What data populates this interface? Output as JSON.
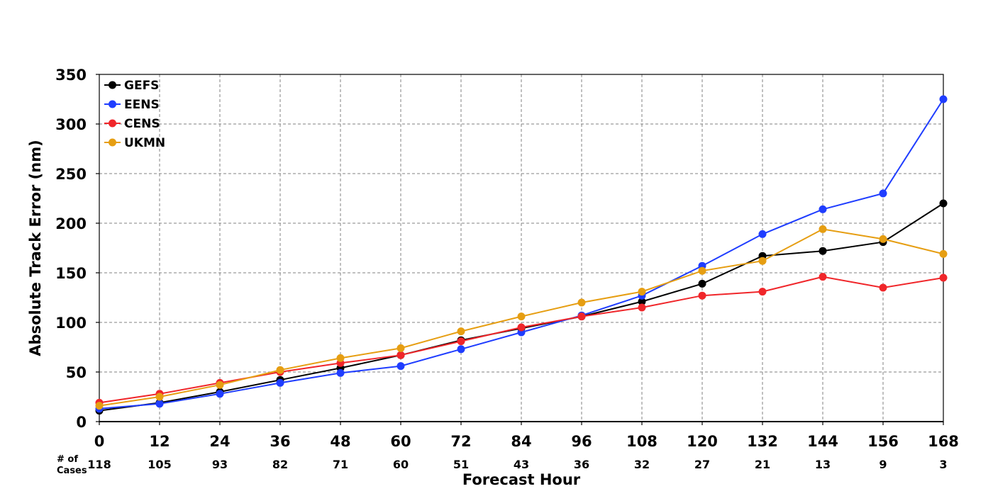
{
  "chart_data": {
    "type": "line",
    "xlabel": "Forecast Hour",
    "ylabel": "Absolute Track Error (nm)",
    "x": [
      0,
      12,
      24,
      36,
      48,
      60,
      72,
      84,
      96,
      108,
      120,
      132,
      144,
      156,
      168
    ],
    "xlim": [
      0,
      168
    ],
    "ylim": [
      0,
      350
    ],
    "yticks": [
      0,
      50,
      100,
      150,
      200,
      250,
      300,
      350
    ],
    "grid": true,
    "legend_position": "top-left",
    "cases_label": [
      "# of",
      "Cases"
    ],
    "cases": [
      118,
      105,
      93,
      82,
      71,
      60,
      51,
      43,
      36,
      32,
      27,
      21,
      13,
      9,
      3
    ],
    "series": [
      {
        "name": "GEFS",
        "color": "#000000",
        "values": [
          11,
          19,
          30,
          42,
          54,
          67,
          82,
          94,
          106,
          121,
          139,
          167,
          172,
          181,
          220
        ]
      },
      {
        "name": "EENS",
        "color": "#1f3dff",
        "values": [
          13,
          18,
          28,
          39,
          49,
          56,
          73,
          90,
          107,
          127,
          157,
          189,
          214,
          230,
          325
        ]
      },
      {
        "name": "CENS",
        "color": "#f0262a",
        "values": [
          19,
          28,
          39,
          50,
          59,
          67,
          81,
          95,
          106,
          115,
          127,
          131,
          146,
          135,
          145
        ]
      },
      {
        "name": "UKMN",
        "color": "#e69e12",
        "values": [
          16,
          25,
          37,
          52,
          64,
          74,
          91,
          106,
          120,
          131,
          152,
          162,
          194,
          184,
          169
        ]
      }
    ]
  }
}
